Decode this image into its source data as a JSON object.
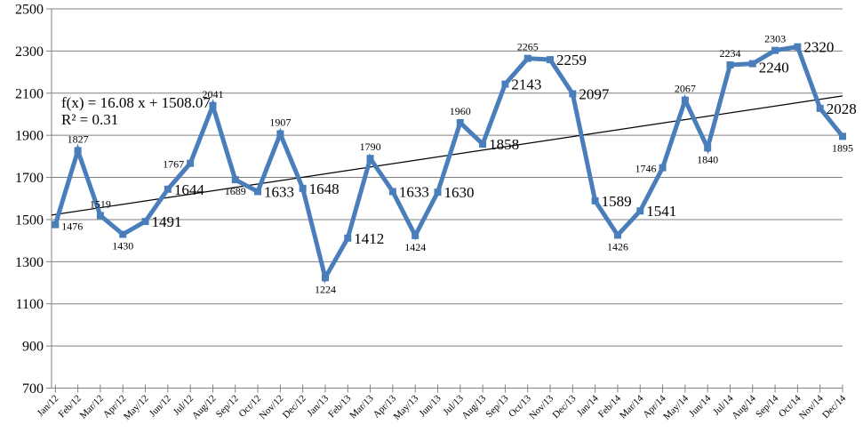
{
  "chart_data": {
    "type": "line",
    "title": "",
    "xlabel": "",
    "ylabel": "",
    "grid": true,
    "legend": "none",
    "ylim": [
      700,
      2500
    ],
    "yticks": [
      700,
      900,
      1100,
      1300,
      1500,
      1700,
      1900,
      2100,
      2300,
      2500
    ],
    "categories": [
      "Jan/12",
      "Feb/12",
      "Mar/12",
      "Apr/12",
      "May/12",
      "Jun/12",
      "Jul/12",
      "Aug/12",
      "Sep/12",
      "Oct/12",
      "Nov/12",
      "Dec/12",
      "Jan/13",
      "Feb/13",
      "Mar/13",
      "Apr/13",
      "May/13",
      "Jun/13",
      "Jul/13",
      "Aug/13",
      "Sep/13",
      "Oct/13",
      "Nov/13",
      "Dec/13",
      "Jan/14",
      "Feb/14",
      "Mar/14",
      "Apr/14",
      "May/14",
      "Jun/14",
      "Jul/14",
      "Aug/14",
      "Sep/14",
      "Oct/14",
      "Nov/14",
      "Dec/14"
    ],
    "values": [
      1476,
      1827,
      1519,
      1430,
      1491,
      1644,
      1767,
      2041,
      1689,
      1633,
      1907,
      1648,
      1224,
      1412,
      1790,
      1633,
      1424,
      1630,
      1960,
      1858,
      2143,
      2265,
      2259,
      2097,
      1589,
      1426,
      1541,
      1746,
      2067,
      1840,
      2234,
      2240,
      2303,
      2320,
      2028,
      1895
    ],
    "labels": [
      {
        "pos": "right",
        "size": "small"
      },
      {
        "pos": "above",
        "size": "small"
      },
      {
        "pos": "above",
        "size": "small"
      },
      {
        "pos": "below",
        "size": "small"
      },
      {
        "pos": "right",
        "size": "large"
      },
      {
        "pos": "right",
        "size": "large"
      },
      {
        "pos": "left",
        "size": "small"
      },
      {
        "pos": "above",
        "size": "small"
      },
      {
        "pos": "below",
        "size": "small"
      },
      {
        "pos": "right",
        "size": "large"
      },
      {
        "pos": "above",
        "size": "small"
      },
      {
        "pos": "right",
        "size": "large"
      },
      {
        "pos": "below",
        "size": "small"
      },
      {
        "pos": "right",
        "size": "large"
      },
      {
        "pos": "above",
        "size": "small"
      },
      {
        "pos": "right",
        "size": "large"
      },
      {
        "pos": "below",
        "size": "small"
      },
      {
        "pos": "right",
        "size": "large"
      },
      {
        "pos": "above",
        "size": "small"
      },
      {
        "pos": "right",
        "size": "large"
      },
      {
        "pos": "right",
        "size": "large"
      },
      {
        "pos": "above",
        "size": "small"
      },
      {
        "pos": "right",
        "size": "large"
      },
      {
        "pos": "right",
        "size": "large"
      },
      {
        "pos": "right",
        "size": "large"
      },
      {
        "pos": "below",
        "size": "small"
      },
      {
        "pos": "right",
        "size": "large"
      },
      {
        "pos": "left",
        "size": "small"
      },
      {
        "pos": "above",
        "size": "small"
      },
      {
        "pos": "below",
        "size": "small"
      },
      {
        "pos": "above",
        "size": "small"
      },
      {
        "pos": "right",
        "size": "large",
        "dy": 4
      },
      {
        "pos": "above",
        "size": "small"
      },
      {
        "pos": "right",
        "size": "large"
      },
      {
        "pos": "right",
        "size": "large"
      },
      {
        "pos": "below",
        "size": "small"
      }
    ],
    "trendline": {
      "line1": "f(x) = 16.08 x + 1508.07",
      "line2": "R² = 0.31",
      "slope": 16.08,
      "intercept": 1508.07
    },
    "colors": {
      "series": "#4a7ebb",
      "grid": "#808080",
      "trend": "#000000",
      "text": "#000000"
    }
  }
}
